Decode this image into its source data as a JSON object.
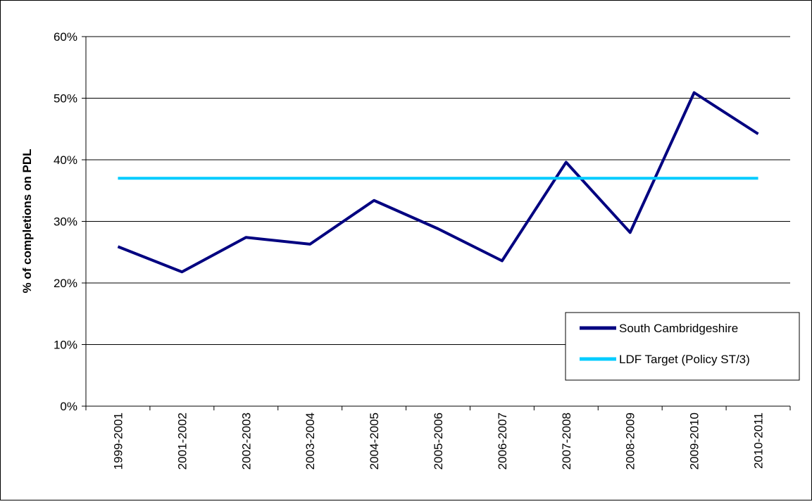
{
  "chart_data": {
    "type": "line",
    "y_label": "% of completions on PDL",
    "categories": [
      "1999-2001",
      "2001-2002",
      "2002-2003",
      "2003-2004",
      "2004-2005",
      "2005-2006",
      "2006-2007",
      "2007-2008",
      "2008-2009",
      "2009-2010",
      "2010-2011"
    ],
    "series": [
      {
        "name": "South Cambridgeshire",
        "color": "#000080",
        "values": [
          25.9,
          21.8,
          27.4,
          26.3,
          33.4,
          28.8,
          23.6,
          39.6,
          28.2,
          50.9,
          44.2
        ]
      },
      {
        "name": "LDF Target (Policy ST/3)",
        "color": "#00ccff",
        "values": [
          37,
          37,
          37,
          37,
          37,
          37,
          37,
          37,
          37,
          37,
          37
        ]
      }
    ],
    "ylim": [
      0,
      60
    ],
    "yticks": [
      {
        "value": 0,
        "label": "0%"
      },
      {
        "value": 10,
        "label": "10%"
      },
      {
        "value": 20,
        "label": "20%"
      },
      {
        "value": 30,
        "label": "30%"
      },
      {
        "value": 40,
        "label": "40%"
      },
      {
        "value": 50,
        "label": "50%"
      },
      {
        "value": 60,
        "label": "60%"
      }
    ],
    "grid": true,
    "legend": "lower right"
  }
}
